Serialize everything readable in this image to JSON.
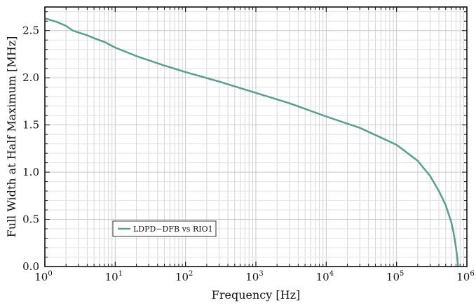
{
  "chart_data": {
    "type": "line",
    "title": "",
    "xlabel": "Frequency [Hz]",
    "ylabel": "Full Width at Half Maximum [MHz]",
    "xscale": "log",
    "xlim": [
      1,
      1000000
    ],
    "ylim": [
      0,
      2.75
    ],
    "grid": true,
    "legend_position": "lower-left",
    "x_ticks": [
      {
        "base": "10",
        "exp": "0"
      },
      {
        "base": "10",
        "exp": "1"
      },
      {
        "base": "10",
        "exp": "2"
      },
      {
        "base": "10",
        "exp": "3"
      },
      {
        "base": "10",
        "exp": "4"
      },
      {
        "base": "10",
        "exp": "5"
      },
      {
        "base": "10",
        "exp": "6"
      }
    ],
    "y_ticks": [
      "0.0",
      "0.5",
      "1.0",
      "1.5",
      "2.0",
      "2.5"
    ],
    "y_tick_values": [
      0,
      0.5,
      1.0,
      1.5,
      2.0,
      2.5
    ],
    "series": [
      {
        "name": "LDPD−DFB vs RIO1",
        "color": "#5a9e8f",
        "x": [
          1,
          1.5,
          2,
          2.5,
          3,
          4,
          5,
          7,
          10,
          20,
          50,
          100,
          300,
          1000,
          3000,
          10000,
          30000,
          100000,
          200000,
          300000,
          400000,
          500000,
          600000,
          650000,
          700000,
          730000,
          750000
        ],
        "y": [
          2.63,
          2.59,
          2.55,
          2.5,
          2.48,
          2.45,
          2.42,
          2.38,
          2.32,
          2.23,
          2.13,
          2.06,
          1.96,
          1.84,
          1.73,
          1.59,
          1.47,
          1.29,
          1.12,
          0.96,
          0.8,
          0.65,
          0.47,
          0.35,
          0.2,
          0.09,
          0.0
        ]
      }
    ]
  }
}
